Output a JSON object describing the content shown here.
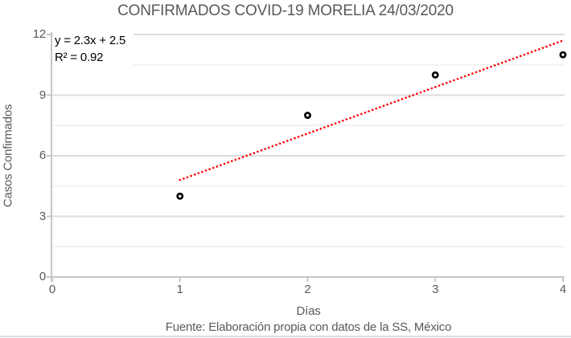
{
  "chart_data": {
    "type": "scatter",
    "title": "CONFIRMADOS COVID-19 MORELIA 24/03/2020",
    "xlabel": "Días",
    "ylabel": "Casos Confirmados",
    "source_note": "Fuente: Elaboración propia con datos de la SS, México",
    "x": [
      1,
      2,
      3,
      4
    ],
    "y": [
      4,
      8,
      10,
      11
    ],
    "xlim": [
      0,
      4
    ],
    "ylim": [
      0,
      12
    ],
    "xticks": [
      "0",
      "1",
      "2",
      "3",
      "4"
    ],
    "yticks": [
      "0",
      "3",
      "6",
      "9",
      "12"
    ],
    "minor_grid_step": 1.5,
    "major_grid_step": 3,
    "grid": true,
    "legend": "none",
    "trendline": {
      "equation_label": "y = 2.3x + 2.5",
      "r2_label": "R² = 0.92",
      "slope": 2.3,
      "intercept": 2.5,
      "r2": 0.92,
      "x_range": [
        1,
        4
      ],
      "style": "dotted",
      "color": "#FF0000"
    },
    "marker": {
      "shape": "ring",
      "stroke": "#000000",
      "fill": "#FFFFFF"
    },
    "colors": {
      "title_text": "#595959",
      "axis_text": "#595959",
      "annotation_text": "#000000",
      "axis_line": "#C6C6C6",
      "grid_major": "#DBDBDB",
      "grid_minor": "#F2F2F2",
      "bottom_rule": "#DADDE3",
      "background": "#FFFFFF"
    }
  }
}
